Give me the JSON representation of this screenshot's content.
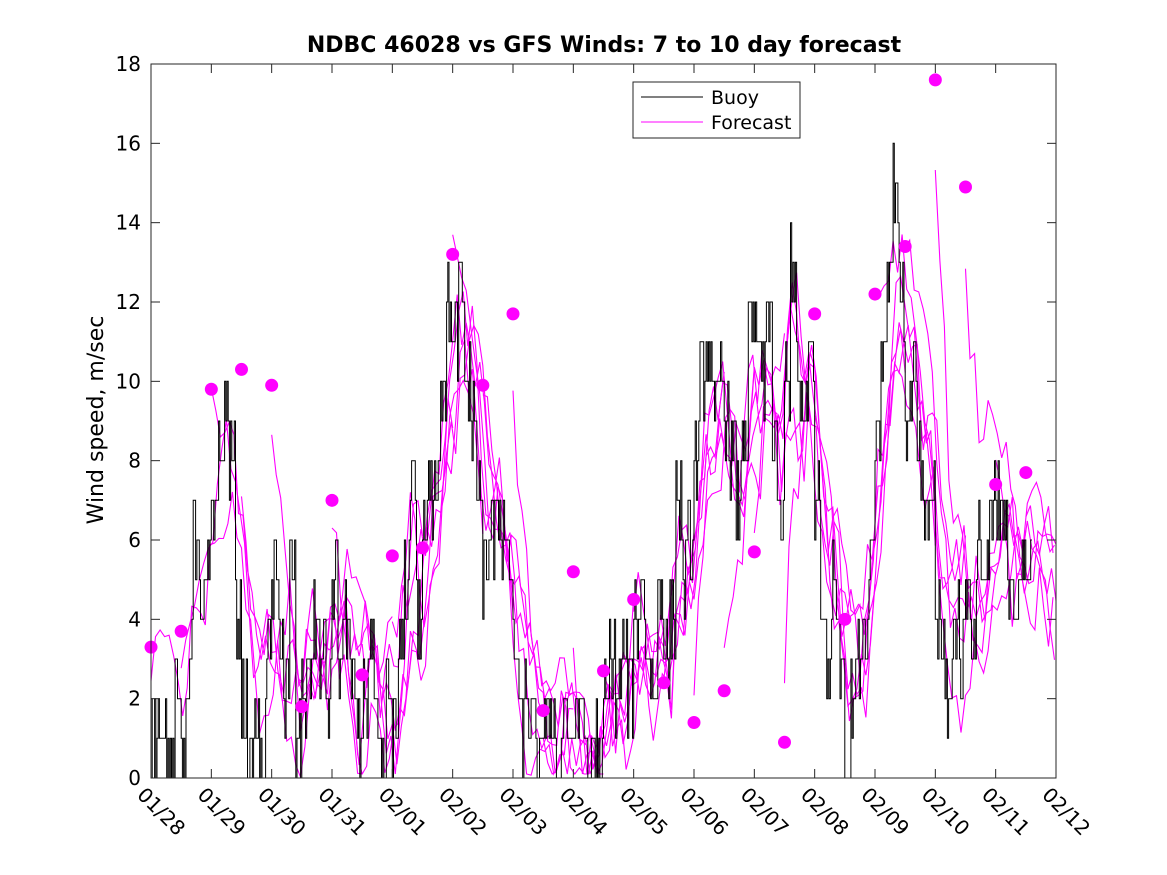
{
  "colors": {
    "buoy": "#000000",
    "forecast": "#ff00ff",
    "axis": "#262626",
    "background": "#ffffff"
  },
  "chart_data": {
    "type": "line",
    "title": "NDBC 46028 vs GFS Winds: 7 to 10 day forecast",
    "xlabel": "",
    "ylabel": "Wind speed, m/sec",
    "xlim": [
      0,
      15
    ],
    "ylim": [
      0,
      18
    ],
    "grid": false,
    "legend": {
      "placement": "top-center",
      "entries": [
        "Buoy",
        "Forecast"
      ]
    },
    "x_tick_labels": [
      "01/28",
      "01/29",
      "01/30",
      "01/31",
      "02/01",
      "02/02",
      "02/03",
      "02/04",
      "02/05",
      "02/06",
      "02/07",
      "02/08",
      "02/09",
      "02/10",
      "02/11",
      "02/12"
    ],
    "y_ticks": [
      "0",
      "2",
      "4",
      "6",
      "8",
      "10",
      "12",
      "14",
      "16",
      "18"
    ],
    "x_units": "days since 01/28",
    "buoy_series": {
      "name": "Buoy",
      "x": [
        0,
        0.1,
        0.2,
        0.3,
        0.4,
        0.5,
        0.6,
        0.7,
        0.8,
        0.9,
        1.0,
        1.1,
        1.2,
        1.3,
        1.4,
        1.5,
        1.6,
        1.7,
        1.8,
        1.9,
        2.0,
        2.1,
        2.2,
        2.3,
        2.4,
        2.5,
        2.6,
        2.7,
        2.8,
        2.9,
        3.0,
        3.1,
        3.2,
        3.3,
        3.4,
        3.5,
        3.6,
        3.7,
        3.8,
        3.9,
        4.0,
        4.1,
        4.2,
        4.3,
        4.4,
        4.5,
        4.6,
        4.7,
        4.8,
        4.9,
        5.0,
        5.1,
        5.2,
        5.3,
        5.4,
        5.5,
        5.6,
        5.7,
        5.8,
        5.9,
        6.0,
        6.1,
        6.2,
        6.3,
        6.4,
        6.5,
        6.6,
        6.7,
        6.8,
        6.9,
        7.0,
        7.1,
        7.2,
        7.3,
        7.4,
        7.5,
        7.6,
        7.7,
        7.8,
        7.9,
        8.0,
        8.1,
        8.2,
        8.3,
        8.4,
        8.5,
        8.6,
        8.7,
        8.8,
        8.9,
        9.0,
        9.1,
        9.2,
        9.3,
        9.4,
        9.5,
        9.6,
        9.7,
        9.8,
        9.9,
        10.0,
        10.1,
        10.2,
        10.3,
        10.4,
        10.5,
        10.6,
        10.7,
        10.8,
        10.9,
        11.0,
        11.1,
        11.2,
        11.3,
        11.4,
        11.5,
        11.6,
        11.7,
        11.8,
        11.9,
        12.0,
        12.1,
        12.2,
        12.3,
        12.4,
        12.5,
        12.6,
        12.7,
        12.8,
        12.9,
        13.0,
        13.1,
        13.2,
        13.3,
        13.4,
        13.5,
        13.6,
        13.7,
        13.8,
        13.9,
        14.0,
        14.1,
        14.2,
        14.3,
        14.4,
        14.5
      ],
      "values": [
        1,
        2,
        1,
        0,
        2,
        1,
        3,
        6,
        4,
        5,
        7,
        8,
        9,
        8,
        4,
        2,
        0,
        1,
        0,
        3,
        5,
        4,
        2,
        5,
        1,
        2,
        3,
        4,
        3,
        2,
        5,
        3,
        4,
        2,
        1,
        2,
        3,
        1,
        0,
        2,
        1,
        3,
        5,
        8,
        4,
        6,
        7,
        8,
        10,
        12,
        11,
        12,
        10,
        9,
        7,
        5,
        6,
        7,
        6,
        5,
        3,
        1,
        2,
        1,
        0,
        2,
        1,
        0,
        2,
        1,
        1,
        2,
        0,
        1,
        0,
        2,
        3,
        2,
        3,
        2,
        4,
        5,
        3,
        2,
        5,
        3,
        4,
        7,
        5,
        6,
        8,
        10,
        11,
        9,
        10,
        9,
        8,
        7,
        9,
        11,
        11,
        10,
        12,
        8,
        6,
        10,
        13,
        10,
        9,
        11,
        7,
        4,
        3,
        5,
        3,
        0,
        2,
        3,
        4,
        6,
        9,
        11,
        13,
        15,
        12,
        9,
        10,
        8,
        6,
        7,
        4,
        3,
        2,
        4,
        3,
        5,
        4,
        6,
        5,
        7,
        7,
        6,
        5,
        4,
        5,
        5
      ]
    },
    "forecast_markers": {
      "name": "Forecast",
      "x": [
        0.0,
        0.5,
        1.0,
        1.5,
        2.0,
        2.5,
        3.0,
        3.5,
        4.0,
        4.5,
        5.0,
        5.5,
        6.0,
        6.5,
        7.0,
        7.5,
        8.0,
        8.5,
        9.0,
        9.5,
        10.0,
        10.5,
        11.0,
        11.5,
        12.0,
        12.5,
        13.0,
        13.5,
        14.0,
        14.5
      ],
      "values": [
        3.3,
        3.7,
        9.8,
        10.3,
        9.9,
        1.8,
        7.0,
        2.6,
        5.6,
        5.8,
        13.2,
        9.9,
        11.7,
        1.7,
        5.2,
        2.7,
        4.5,
        2.4,
        1.4,
        2.2,
        5.7,
        0.9,
        11.7,
        4.0,
        12.2,
        13.4,
        17.6,
        14.9,
        7.4,
        7.7
      ]
    }
  }
}
